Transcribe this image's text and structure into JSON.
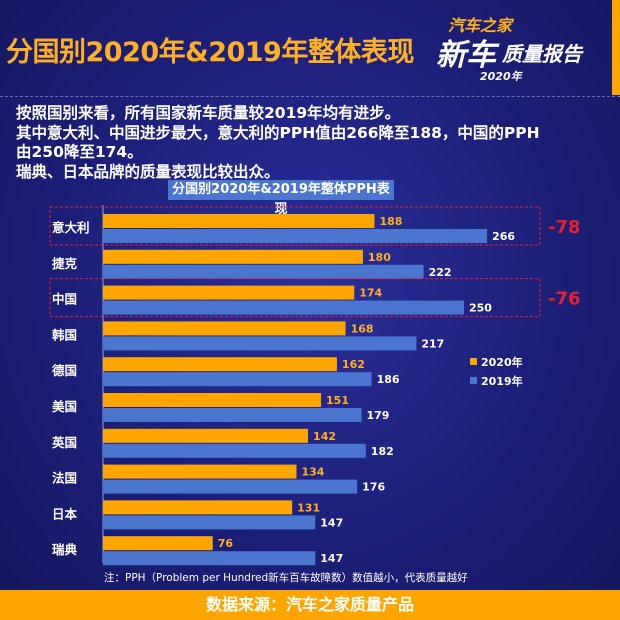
{
  "header": {
    "title": "分国别2020年&2019年整体表现",
    "logo": [
      "汽车之家",
      "新车",
      "质量报告",
      "2020年"
    ]
  },
  "description": [
    "按照国别来看，所有国家新车质量较2019年均有进步。",
    "其中意大利、中国进步最大，意大利的PPH值由266降至188，中国的PPH",
    "由250降至174。",
    "瑞典、日本品牌的质量表现比较出众。"
  ],
  "chart_data": {
    "type": "bar",
    "orientation": "horizontal",
    "title": "分国别2020年&2019年整体PPH表现",
    "categories": [
      "意大利",
      "捷克",
      "中国",
      "韩国",
      "德国",
      "美国",
      "英国",
      "法国",
      "日本",
      "瑞典"
    ],
    "series": [
      {
        "name": "2020年",
        "color": "#ffa500",
        "values": [
          188,
          180,
          174,
          168,
          162,
          151,
          142,
          134,
          131,
          76
        ]
      },
      {
        "name": "2019年",
        "color": "#4a76d0",
        "values": [
          266,
          222,
          250,
          217,
          186,
          179,
          182,
          176,
          147,
          147
        ]
      }
    ],
    "annotations": [
      {
        "category": "意大利",
        "text": "-78",
        "color": "#e8202a"
      },
      {
        "category": "中国",
        "text": "-76",
        "color": "#e8202a"
      }
    ],
    "legend": "right",
    "xlim": [
      0,
      300
    ]
  },
  "note": "注：PPH（Problem per Hundred新车百车故障数）数值越小，代表质量越好",
  "footer": "数据来源：汽车之家质量产品"
}
